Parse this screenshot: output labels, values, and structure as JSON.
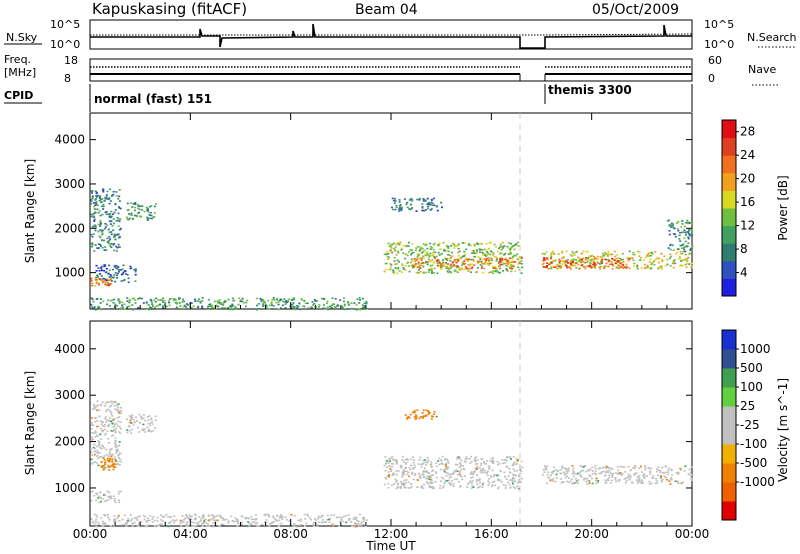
{
  "header": {
    "station": "Kapuskasing (fitACF)",
    "beam": "Beam 04",
    "date": "05/Oct/2009"
  },
  "noise_panel": {
    "left_label": "N.Sky",
    "right_label": "N.Search",
    "left_ticks": [
      "10^5",
      "10^0"
    ],
    "right_ticks": [
      "10^5",
      "10^0"
    ]
  },
  "freq_panel": {
    "left_label_1": "Freq.",
    "left_label_2": "[MHz]",
    "right_label": "Nave",
    "left_ticks": [
      "18",
      "8"
    ],
    "right_ticks": [
      "60",
      "0"
    ]
  },
  "cpid_panel": {
    "label": "CPID",
    "programs": [
      {
        "name": "normal (fast) 151",
        "start": "00:00",
        "end": "17:15"
      },
      {
        "name": "themis 3300",
        "start": "18:00",
        "end": "24:00"
      }
    ]
  },
  "colors": {
    "power_scale": [
      "#1f1fe0",
      "#3050c0",
      "#2e7d6e",
      "#3fa060",
      "#70c040",
      "#d8d820",
      "#f0a020",
      "#f07020",
      "#e04020",
      "#e01010"
    ],
    "velocity_scale": [
      "#e00000",
      "#f06000",
      "#f08000",
      "#f0b000",
      "#c0c0c0",
      "#c0c0c0",
      "#60d040",
      "#40a050",
      "#305090",
      "#1830d0"
    ]
  },
  "chart_data": [
    {
      "type": "heatmap",
      "panel": "power",
      "xlabel": "",
      "ylabel": "Slant Range [km]",
      "x_tick_labels": [
        "00:00",
        "04:00",
        "08:00",
        "12:00",
        "16:00",
        "20:00",
        "00:00"
      ],
      "y_tick_labels": [
        "1000",
        "2000",
        "3000",
        "4000"
      ],
      "xlim_hours": [
        0,
        24
      ],
      "ylim_km": [
        180,
        4600
      ],
      "colorbar_label": "Power [dB]",
      "colorbar_ticks": [
        "4",
        "8",
        "12",
        "16",
        "20",
        "24",
        "28"
      ],
      "colorbar_range": [
        0,
        30
      ],
      "data_gap_hours": [
        17.25,
        18.0
      ],
      "echo_regions": [
        {
          "t_start": 0.0,
          "t_end": 0.8,
          "r_start": 700,
          "r_end": 900,
          "power_db": 22
        },
        {
          "t_start": 0.0,
          "t_end": 1.2,
          "r_start": 1500,
          "r_end": 2900,
          "power_db": 8
        },
        {
          "t_start": 1.4,
          "t_end": 2.6,
          "r_start": 2200,
          "r_end": 2600,
          "power_db": 10
        },
        {
          "t_start": 0.2,
          "t_end": 1.8,
          "r_start": 800,
          "r_end": 1200,
          "power_db": 6
        },
        {
          "t_start": 0.0,
          "t_end": 11.0,
          "r_start": 180,
          "r_end": 450,
          "power_db": 10
        },
        {
          "t_start": 11.7,
          "t_end": 17.2,
          "r_start": 1000,
          "r_end": 1700,
          "power_db": 14
        },
        {
          "t_start": 12.8,
          "t_end": 17.2,
          "r_start": 1100,
          "r_end": 1350,
          "power_db": 22
        },
        {
          "t_start": 12.0,
          "t_end": 14.0,
          "r_start": 2400,
          "r_end": 2700,
          "power_db": 7
        },
        {
          "t_start": 18.0,
          "t_end": 24.0,
          "r_start": 1100,
          "r_end": 1500,
          "power_db": 16
        },
        {
          "t_start": 18.0,
          "t_end": 21.5,
          "r_start": 1100,
          "r_end": 1350,
          "power_db": 24
        },
        {
          "t_start": 23.0,
          "t_end": 24.0,
          "r_start": 1500,
          "r_end": 2200,
          "power_db": 9
        }
      ]
    },
    {
      "type": "heatmap",
      "panel": "velocity",
      "xlabel": "Time UT",
      "ylabel": "Slant Range [km]",
      "x_tick_labels": [
        "00:00",
        "04:00",
        "08:00",
        "12:00",
        "16:00",
        "20:00",
        "00:00"
      ],
      "y_tick_labels": [
        "1000",
        "2000",
        "3000",
        "4000"
      ],
      "xlim_hours": [
        0,
        24
      ],
      "ylim_km": [
        180,
        4600
      ],
      "colorbar_label": "Velocity [m s^-1]",
      "colorbar_ticks": [
        "1000",
        "500",
        "100",
        "25",
        "-25",
        "-100",
        "-500",
        "-1000"
      ],
      "data_gap_hours": [
        17.25,
        18.0
      ],
      "echo_regions": [
        {
          "t_start": 0.0,
          "t_end": 1.2,
          "r_start": 700,
          "r_end": 950,
          "velocity": 0
        },
        {
          "t_start": 0.0,
          "t_end": 1.2,
          "r_start": 1500,
          "r_end": 2900,
          "velocity": 0
        },
        {
          "t_start": 1.4,
          "t_end": 2.6,
          "r_start": 2200,
          "r_end": 2600,
          "velocity": 0
        },
        {
          "t_start": 0.0,
          "t_end": 11.0,
          "r_start": 180,
          "r_end": 450,
          "velocity": 0
        },
        {
          "t_start": 11.7,
          "t_end": 17.2,
          "r_start": 1000,
          "r_end": 1700,
          "velocity": 0
        },
        {
          "t_start": 12.5,
          "t_end": 13.8,
          "r_start": 2500,
          "r_end": 2700,
          "velocity": -100
        },
        {
          "t_start": 18.0,
          "t_end": 24.0,
          "r_start": 1100,
          "r_end": 1500,
          "velocity": 0
        },
        {
          "t_start": 0.4,
          "t_end": 1.0,
          "r_start": 1400,
          "r_end": 1700,
          "velocity": -100
        }
      ]
    }
  ]
}
